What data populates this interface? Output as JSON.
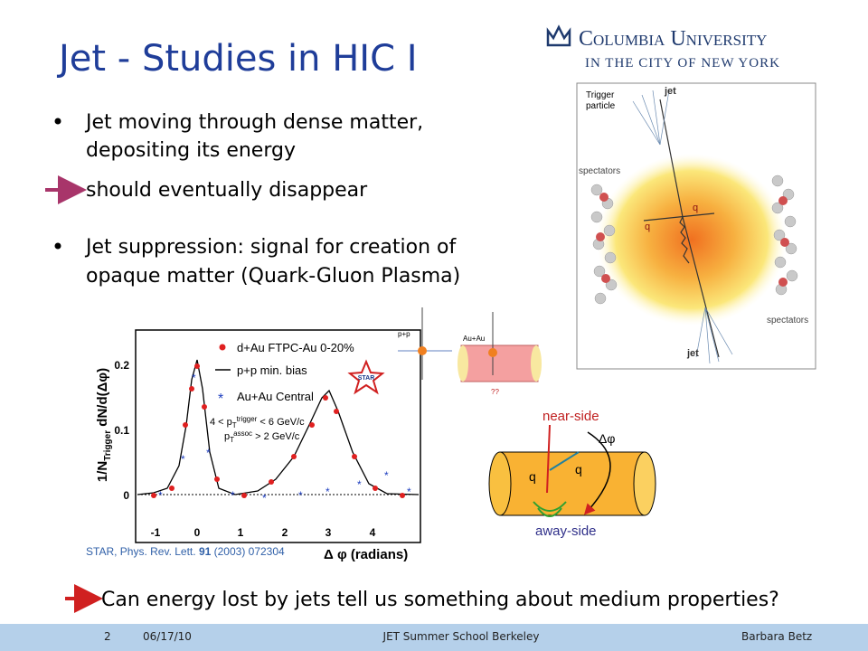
{
  "header": {
    "title": "Jet - Studies in HIC I",
    "logo_name": "Columbia University",
    "logo_sub": "IN THE CITY OF NEW YORK"
  },
  "bullets": [
    {
      "lines": [
        "Jet moving through dense matter,",
        "depositing its energy"
      ]
    },
    {
      "lines": [
        "should eventually disappear"
      ]
    },
    {
      "lines": [
        "Jet suppression: signal for creation of",
        "opaque matter (Quark-Gluon Plasma)"
      ]
    }
  ],
  "collision_figure": {
    "trigger": [
      "Trigger",
      "particle"
    ],
    "jet_top": "jet",
    "spectators_left": "spectators",
    "q_right": "q",
    "q_left": "q",
    "spectators_right": "spectators",
    "jet_bottom": "jet"
  },
  "plot": {
    "legend": [
      "d+Au FTPC-Au 0-20%",
      "p+p min. bias",
      "Au+Au Central"
    ],
    "star_logo": "STAR",
    "cut1": [
      "4 < p",
      "T",
      "trigger",
      " < 6 GeV/c"
    ],
    "cut2": [
      "p",
      "T",
      "assoc",
      " > 2 GeV/c"
    ],
    "y_label": [
      "1/N",
      "Trigger",
      " dN/d(Δφ)"
    ],
    "x_label": "Δ φ (radians)",
    "y_tick_labels": [
      0.2,
      0.1,
      0
    ],
    "x_tick_labels": [
      -1,
      0,
      1,
      2,
      3,
      4
    ],
    "citation": [
      "STAR, Phys. Rev. Lett. ",
      "91",
      " (2003) 072304"
    ]
  },
  "small_diagrams": {
    "pp": "p+p",
    "auau": "Au+Au",
    "unknown": "??",
    "near_side": "near-side",
    "away_side": "away-side",
    "q1": "q",
    "q2": "q",
    "dphi": "Δφ"
  },
  "question": "Can energy lost by jets tell us something about medium properties?",
  "footer": {
    "page": "2",
    "date": "06/17/10",
    "event": "JET Summer School Berkeley",
    "author": "Barbara Betz"
  }
}
